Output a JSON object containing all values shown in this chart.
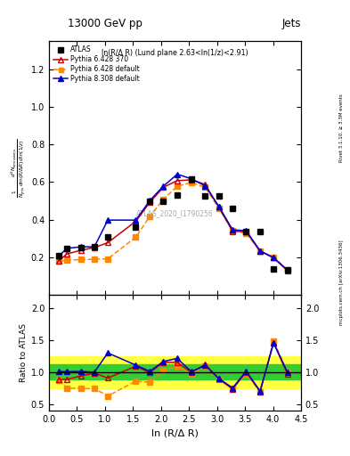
{
  "title": "13000 GeV pp",
  "title_right": "Jets",
  "inner_title": "ln(R/Δ R) (Lund plane 2.63<ln(1/z)<2.91)",
  "watermark": "ATLAS_2020_I1790256",
  "right_label": "Rivet 3.1.10, ≥ 3.3M events",
  "right_label2": "mcplots.cern.ch [arXiv:1306.3436]",
  "ylabel_ratio": "Ratio to ATLAS",
  "xlabel": "ln (R/Δ R)",
  "xlim": [
    0.0,
    4.5
  ],
  "ylim_main": [
    0.0,
    1.35
  ],
  "ylim_ratio": [
    0.4,
    2.2
  ],
  "yticks_main": [
    0.2,
    0.4,
    0.6,
    0.8,
    1.0,
    1.2
  ],
  "yticks_ratio": [
    0.5,
    1.0,
    1.5,
    2.0
  ],
  "atlas_x": [
    0.18,
    0.32,
    0.57,
    0.81,
    1.05,
    1.55,
    1.8,
    2.04,
    2.29,
    2.54,
    2.79,
    3.03,
    3.28,
    3.52,
    3.77,
    4.01,
    4.26
  ],
  "atlas_y": [
    0.207,
    0.247,
    0.254,
    0.257,
    0.307,
    0.36,
    0.498,
    0.497,
    0.53,
    0.615,
    0.527,
    0.525,
    0.461,
    0.338,
    0.335,
    0.136,
    0.133
  ],
  "py6_370_x": [
    0.18,
    0.32,
    0.57,
    0.81,
    1.05,
    1.55,
    1.8,
    2.04,
    2.29,
    2.54,
    2.79,
    3.03,
    3.28,
    3.52,
    3.77,
    4.01,
    4.26
  ],
  "py6_370_y": [
    0.183,
    0.218,
    0.238,
    0.252,
    0.278,
    0.392,
    0.492,
    0.572,
    0.608,
    0.612,
    0.588,
    0.468,
    0.338,
    0.338,
    0.232,
    0.198,
    0.128
  ],
  "py6_def_x": [
    0.18,
    0.32,
    0.57,
    0.81,
    1.05,
    1.55,
    1.8,
    2.04,
    2.29,
    2.54,
    2.79,
    3.03,
    3.28,
    3.52,
    3.77,
    4.01,
    4.26
  ],
  "py6_def_y": [
    0.18,
    0.185,
    0.188,
    0.19,
    0.192,
    0.308,
    0.418,
    0.508,
    0.578,
    0.598,
    0.572,
    0.462,
    0.342,
    0.328,
    0.232,
    0.202,
    0.132
  ],
  "py8_def_x": [
    0.18,
    0.32,
    0.57,
    0.81,
    1.05,
    1.55,
    1.8,
    2.04,
    2.29,
    2.54,
    2.79,
    3.03,
    3.28,
    3.52,
    3.77,
    4.01,
    4.26
  ],
  "py8_def_y": [
    0.208,
    0.248,
    0.256,
    0.256,
    0.398,
    0.398,
    0.502,
    0.578,
    0.642,
    0.618,
    0.58,
    0.472,
    0.346,
    0.342,
    0.235,
    0.198,
    0.132
  ],
  "ratio_py6_370_y": [
    0.885,
    0.883,
    0.937,
    0.981,
    0.905,
    1.089,
    0.988,
    1.151,
    1.147,
    0.995,
    1.116,
    0.891,
    0.733,
    1.0,
    0.693,
    1.456,
    0.962
  ],
  "ratio_py6_def_y": [
    0.869,
    0.749,
    0.74,
    0.74,
    0.625,
    0.856,
    0.839,
    1.022,
    1.091,
    0.972,
    1.085,
    0.88,
    0.742,
    0.97,
    0.693,
    1.485,
    0.992
  ],
  "ratio_py8_def_y": [
    1.005,
    1.004,
    1.008,
    0.996,
    1.296,
    1.106,
    1.008,
    1.163,
    1.211,
    1.005,
    1.101,
    0.899,
    0.75,
    1.012,
    0.701,
    1.456,
    0.992
  ],
  "color_atlas": "#000000",
  "color_py6_370": "#cc0000",
  "color_py6_def": "#ff8800",
  "color_py8_def": "#0000cc",
  "band_green": "#33cc33",
  "band_yellow": "#ffff44"
}
